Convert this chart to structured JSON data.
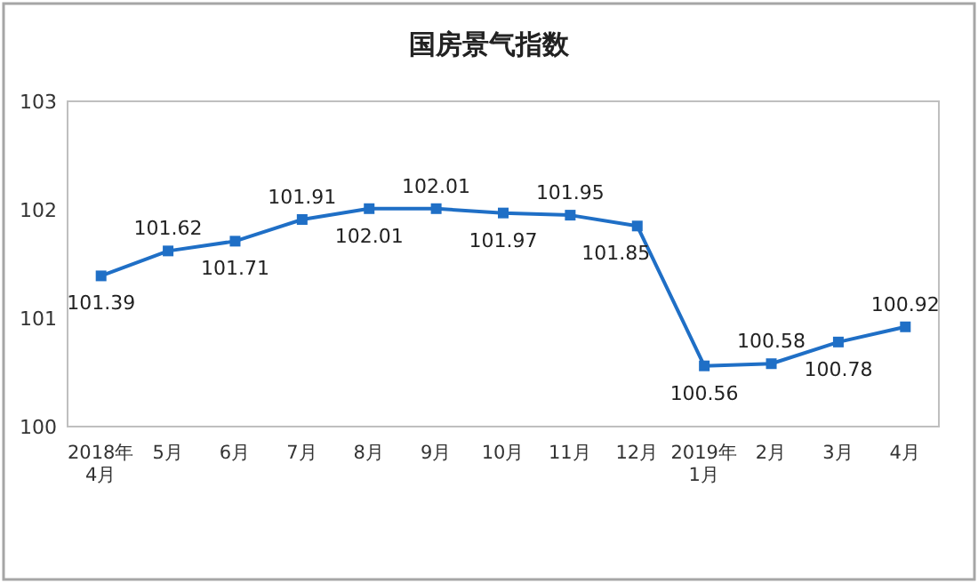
{
  "chart_data": {
    "type": "line",
    "title": "国房景气指数",
    "categories": [
      "2018年\n4月",
      "5月",
      "6月",
      "7月",
      "8月",
      "9月",
      "10月",
      "11月",
      "12月",
      "2019年\n1月",
      "2月",
      "3月",
      "4月"
    ],
    "series": [
      {
        "color": "#1f6fc6",
        "values": [
          101.39,
          101.62,
          101.71,
          101.91,
          102.01,
          102.01,
          101.97,
          101.95,
          101.85,
          100.56,
          100.58,
          100.78,
          100.92
        ]
      }
    ],
    "ylim": [
      100,
      103
    ],
    "yticks": [
      100,
      101,
      102,
      103
    ],
    "grid": false,
    "marker": "square",
    "line_style": "solid",
    "data_labels": true
  }
}
